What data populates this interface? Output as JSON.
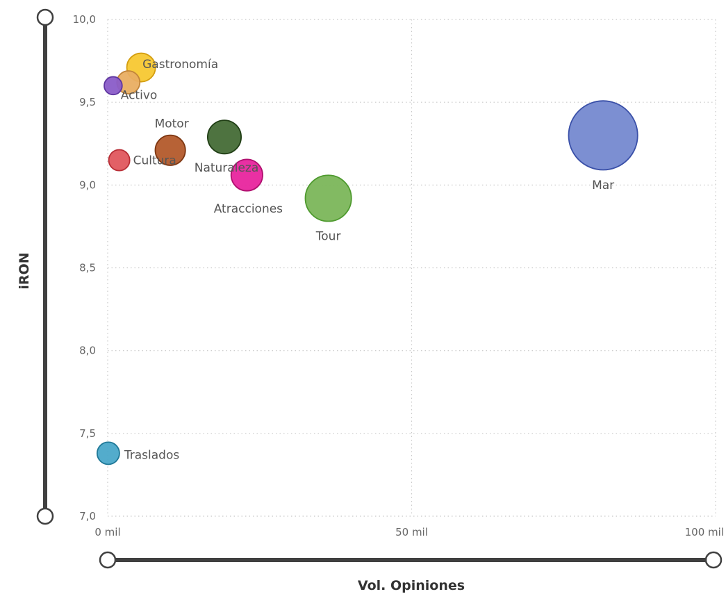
{
  "chart_data": {
    "type": "scatter",
    "xlabel": "Vol. Opiniones",
    "ylabel": "iRON",
    "xlim": [
      0,
      100
    ],
    "ylim": [
      7.0,
      10.0
    ],
    "x_ticks": [
      {
        "value": 0,
        "label": "0 mil"
      },
      {
        "value": 50,
        "label": "50 mil"
      },
      {
        "value": 100,
        "label": "100 mil"
      }
    ],
    "y_ticks": [
      {
        "value": 10.0,
        "label": "10,0"
      },
      {
        "value": 9.5,
        "label": "9,5"
      },
      {
        "value": 9.0,
        "label": "9,0"
      },
      {
        "value": 8.5,
        "label": "8,5"
      },
      {
        "value": 8.0,
        "label": "8,0"
      },
      {
        "value": 7.5,
        "label": "7,5"
      },
      {
        "value": 7.0,
        "label": "7,0"
      }
    ],
    "grid": true,
    "points": [
      {
        "label": "Mar",
        "x": 81.5,
        "y": 9.3,
        "size": 81.5,
        "color": "#7589D0",
        "stroke": "#3A50A8"
      },
      {
        "label": "Tour",
        "x": 36.3,
        "y": 8.92,
        "size": 36.3,
        "color": "#7BB65A",
        "stroke": "#4E9A2E"
      },
      {
        "label": "Naturaleza",
        "x": 19.2,
        "y": 9.29,
        "size": 19.2,
        "color": "#456C36",
        "stroke": "#1F3D14"
      },
      {
        "label": "Atracciones",
        "x": 22.9,
        "y": 9.06,
        "size": 17.0,
        "color": "#E8259E",
        "stroke": "#B0106F"
      },
      {
        "label": "Motor",
        "x": 10.3,
        "y": 9.21,
        "size": 15.5,
        "color": "#B35A2B",
        "stroke": "#7E3712"
      },
      {
        "label": "Gastronomía",
        "x": 5.5,
        "y": 9.71,
        "size": 14.0,
        "color": "#F7C832",
        "stroke": "#D49E0F"
      },
      {
        "label": "Activo",
        "x": 3.4,
        "y": 9.62,
        "size": 9.0,
        "color": "#E9AE62",
        "stroke": "#C2853A"
      },
      {
        "label": "Cultura",
        "x": 1.9,
        "y": 9.15,
        "size": 7.5,
        "color": "#E0575E",
        "stroke": "#B82E36"
      },
      {
        "label": "Traslados",
        "x": 0.1,
        "y": 7.38,
        "size": 8.5,
        "color": "#4AA8C9",
        "stroke": "#1F7897"
      },
      {
        "label": "",
        "x": 0.9,
        "y": 9.6,
        "size": 5.5,
        "color": "#8A5CC8",
        "stroke": "#5F36A0"
      }
    ]
  }
}
